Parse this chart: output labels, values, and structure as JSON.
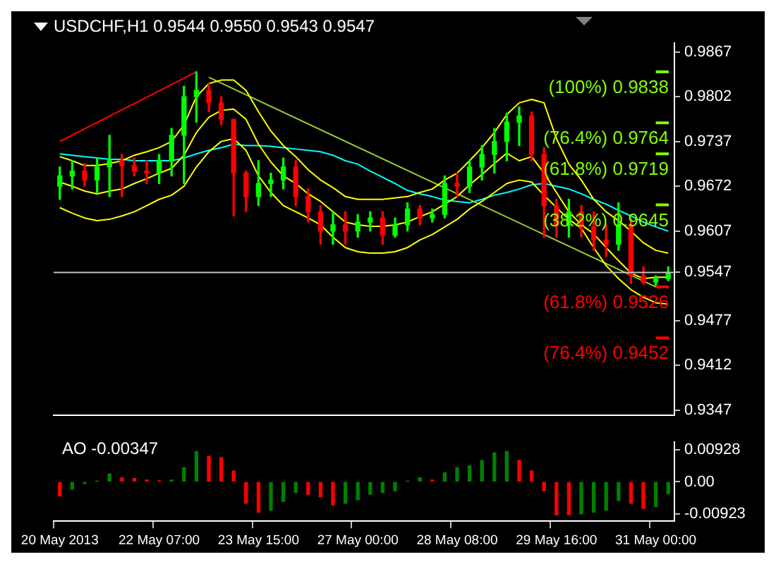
{
  "chart_data": [
    {
      "type": "candlestick",
      "title": "USDCHF,H1 0.9544 0.9550 0.9543 0.9547",
      "categories": [
        null,
        null,
        null,
        null,
        null,
        null,
        null,
        null,
        null,
        null,
        null,
        null,
        null,
        null,
        null,
        null,
        null,
        null,
        null,
        null,
        null,
        null,
        null,
        null,
        null,
        null,
        null,
        null,
        null,
        null,
        null,
        null,
        null,
        null,
        null,
        null,
        null,
        null,
        null,
        null,
        null,
        null,
        null,
        null,
        null,
        null,
        null,
        null,
        null,
        null
      ],
      "ohlc": [
        [
          0.9672,
          0.97,
          0.9653,
          0.9687
        ],
        [
          0.9687,
          0.9709,
          0.9668,
          0.9694
        ],
        [
          0.9694,
          0.9705,
          0.9672,
          0.9681
        ],
        [
          0.9681,
          0.9713,
          0.9663,
          0.97
        ],
        [
          0.97,
          0.9746,
          0.9657,
          0.9709
        ],
        [
          0.9709,
          0.9718,
          0.9657,
          0.9702
        ],
        [
          0.9702,
          0.9713,
          0.9687,
          0.9694
        ],
        [
          0.9694,
          0.9709,
          0.9676,
          0.9691
        ],
        [
          0.9691,
          0.9718,
          0.9676,
          0.9709
        ],
        [
          0.9709,
          0.9756,
          0.9687,
          0.9746
        ],
        [
          0.9746,
          0.9817,
          0.9676,
          0.9802
        ],
        [
          0.9802,
          0.9838,
          0.9765,
          0.9811
        ],
        [
          0.9811,
          0.9821,
          0.978,
          0.9793
        ],
        [
          0.9793,
          0.9802,
          0.9761,
          0.9769
        ],
        [
          0.9769,
          0.9769,
          0.9629,
          0.9691
        ],
        [
          0.9691,
          0.9694,
          0.9635,
          0.9657
        ],
        [
          0.9657,
          0.9709,
          0.9644,
          0.9676
        ],
        [
          0.9676,
          0.9691,
          0.9657,
          0.9681
        ],
        [
          0.9681,
          0.9713,
          0.9668,
          0.97
        ],
        [
          0.97,
          0.9709,
          0.9644,
          0.9657
        ],
        [
          0.9657,
          0.9668,
          0.962,
          0.9635
        ],
        [
          0.9635,
          0.9644,
          0.9588,
          0.9607
        ],
        [
          0.9607,
          0.9635,
          0.9588,
          0.9616
        ],
        [
          0.9616,
          0.9635,
          0.9588,
          0.9607
        ],
        [
          0.9607,
          0.9631,
          0.9598,
          0.962
        ],
        [
          0.962,
          0.9635,
          0.9607,
          0.9626
        ],
        [
          0.9626,
          0.9635,
          0.9588,
          0.9601
        ],
        [
          0.9601,
          0.9626,
          0.9598,
          0.9616
        ],
        [
          0.9616,
          0.9648,
          0.9607,
          0.9639
        ],
        [
          0.9639,
          0.9644,
          0.9616,
          0.9626
        ],
        [
          0.9626,
          0.9639,
          0.962,
          0.9631
        ],
        [
          0.9631,
          0.9687,
          0.9626,
          0.9676
        ],
        [
          0.9676,
          0.9691,
          0.9657,
          0.9672
        ],
        [
          0.9672,
          0.9709,
          0.9663,
          0.97
        ],
        [
          0.97,
          0.9731,
          0.9681,
          0.9718
        ],
        [
          0.9718,
          0.9756,
          0.9691,
          0.9737
        ],
        [
          0.9737,
          0.9778,
          0.9709,
          0.9765
        ],
        [
          0.9765,
          0.9787,
          0.9731,
          0.9774
        ],
        [
          0.9774,
          0.978,
          0.9709,
          0.9718
        ],
        [
          0.9718,
          0.9728,
          0.9598,
          0.9644
        ],
        [
          0.9644,
          0.9653,
          0.9598,
          0.9616
        ],
        [
          0.9616,
          0.9653,
          0.9598,
          0.9635
        ],
        [
          0.9635,
          0.9644,
          0.9598,
          0.9613
        ],
        [
          0.9613,
          0.9635,
          0.9579,
          0.9594
        ],
        [
          0.9594,
          0.9616,
          0.957,
          0.9588
        ],
        [
          0.9588,
          0.9648,
          0.9579,
          0.9616
        ],
        [
          0.9616,
          0.9626,
          0.9531,
          0.9542
        ],
        [
          0.9542,
          0.9555,
          0.953,
          0.9533
        ],
        [
          0.9533,
          0.9542,
          0.9526,
          0.9538
        ],
        [
          0.9538,
          0.9555,
          0.9535,
          0.9547
        ]
      ],
      "colors": [
        "#00ff00",
        "#00ff00",
        "#ff0000",
        "#00ff00",
        "#00ff00",
        "#ff0000",
        "#ff0000",
        "#ff0000",
        "#00ff00",
        "#00ff00",
        "#00ff00",
        "#00ff00",
        "#ff0000",
        "#ff0000",
        "#ff0000",
        "#ff0000",
        "#00ff00",
        "#00ff00",
        "#00ff00",
        "#ff0000",
        "#ff0000",
        "#ff0000",
        "#00ff00",
        "#ff0000",
        "#00ff00",
        "#00ff00",
        "#ff0000",
        "#00ff00",
        "#00ff00",
        "#ff0000",
        "#00ff00",
        "#00ff00",
        "#ff0000",
        "#00ff00",
        "#00ff00",
        "#00ff00",
        "#00ff00",
        "#00ff00",
        "#ff0000",
        "#ff0000",
        "#ff0000",
        "#00ff00",
        "#ff0000",
        "#ff0000",
        "#ff0000",
        "#00ff00",
        "#ff0000",
        "#ff0000",
        "#00ff00",
        "#00ff00"
      ],
      "series": [
        {
          "type": "line",
          "color": "#ffff00",
          "values": [
            0.9715,
            0.9709,
            0.9702,
            0.9702,
            0.9705,
            0.9709,
            0.9717,
            0.9722,
            0.9728,
            0.9737,
            0.9761,
            0.9802,
            0.9821,
            0.9826,
            0.9826,
            0.9811,
            0.978,
            0.9752,
            0.9731,
            0.9715,
            0.9696,
            0.9681,
            0.967,
            0.9657,
            0.9653,
            0.9653,
            0.9653,
            0.9655,
            0.9657,
            0.9663,
            0.9668,
            0.9681,
            0.9691,
            0.9709,
            0.9728,
            0.975,
            0.9776,
            0.9793,
            0.9798,
            0.9793,
            0.9741,
            0.9704,
            0.9681,
            0.9653,
            0.9635,
            0.9622,
            0.9607,
            0.959,
            0.9579,
            0.9575
          ]
        },
        {
          "type": "line",
          "color": "#ffff00",
          "values": [
            0.9678,
            0.9672,
            0.9665,
            0.9661,
            0.9665,
            0.9668,
            0.9676,
            0.9683,
            0.9691,
            0.9698,
            0.9717,
            0.975,
            0.9772,
            0.9782,
            0.9784,
            0.9769,
            0.9733,
            0.9707,
            0.9687,
            0.9676,
            0.9661,
            0.965,
            0.9635,
            0.962,
            0.9616,
            0.9614,
            0.9614,
            0.9616,
            0.962,
            0.9628,
            0.9635,
            0.9646,
            0.9657,
            0.9674,
            0.9689,
            0.9705,
            0.972,
            0.9709,
            0.9715,
            0.9691,
            0.9663,
            0.9635,
            0.9616,
            0.9603,
            0.9583,
            0.9564,
            0.9546,
            0.9538,
            0.954,
            0.954
          ]
        },
        {
          "type": "line",
          "color": "#ffff00",
          "values": [
            0.9641,
            0.9633,
            0.9626,
            0.9622,
            0.9624,
            0.9629,
            0.9635,
            0.9644,
            0.9653,
            0.9659,
            0.9672,
            0.97,
            0.9722,
            0.9737,
            0.9741,
            0.9724,
            0.9687,
            0.9663,
            0.9644,
            0.9635,
            0.9626,
            0.9616,
            0.9598,
            0.9583,
            0.9577,
            0.9575,
            0.9575,
            0.9577,
            0.9583,
            0.9594,
            0.9602,
            0.9613,
            0.9624,
            0.9639,
            0.965,
            0.9663,
            0.9676,
            0.9681,
            0.9678,
            0.9659,
            0.9641,
            0.9624,
            0.9611,
            0.9583,
            0.9557,
            0.9538,
            0.9522,
            0.9511,
            0.9503,
            0.9501
          ]
        },
        {
          "type": "line",
          "color": "#00ffff",
          "values": [
            0.9719,
            0.9717,
            0.9715,
            0.9713,
            0.9711,
            0.9711,
            0.9709,
            0.9709,
            0.9709,
            0.9709,
            0.9713,
            0.9719,
            0.9724,
            0.9728,
            0.9733,
            0.9731,
            0.9731,
            0.973,
            0.9728,
            0.9726,
            0.9724,
            0.9722,
            0.9717,
            0.9709,
            0.9704,
            0.9694,
            0.9685,
            0.9676,
            0.9666,
            0.9661,
            0.9657,
            0.9652,
            0.965,
            0.9648,
            0.9653,
            0.9659,
            0.9663,
            0.9668,
            0.9674,
            0.9676,
            0.9672,
            0.9668,
            0.9661,
            0.9653,
            0.9646,
            0.9637,
            0.9629,
            0.962,
            0.9613,
            0.9607
          ]
        },
        {
          "type": "line",
          "color": "#ff0000",
          "values": [
            0.9737,
            null,
            null,
            null,
            null,
            null,
            null,
            null,
            null,
            null,
            null,
            0.9838,
            null,
            null,
            null,
            null,
            null,
            null,
            null,
            null,
            null,
            null,
            null,
            null,
            null,
            null,
            null,
            null,
            null,
            null,
            null,
            null,
            null,
            null,
            null,
            null,
            null,
            null,
            null,
            null,
            null,
            null,
            null,
            null,
            null,
            null,
            null,
            null,
            null,
            null
          ]
        },
        {
          "type": "line",
          "color": "#9acd32",
          "values": [
            null,
            null,
            null,
            null,
            null,
            null,
            null,
            null,
            null,
            null,
            null,
            null,
            0.983,
            null,
            null,
            null,
            null,
            null,
            null,
            null,
            null,
            null,
            null,
            null,
            null,
            null,
            null,
            null,
            null,
            null,
            null,
            null,
            null,
            null,
            null,
            null,
            null,
            null,
            null,
            null,
            null,
            null,
            null,
            null,
            null,
            null,
            null,
            null,
            0.9526,
            null
          ]
        }
      ],
      "ylim": [
        0.934,
        0.988
      ],
      "yticks": [
        0.9867,
        0.9802,
        0.9737,
        0.9672,
        0.9607,
        0.9547,
        0.9477,
        0.9412,
        0.9347
      ],
      "ref_lines": [
        {
          "axis": "y",
          "value": 0.9838,
          "label": "(100%) 0.9838",
          "color": "#80ff00"
        },
        {
          "axis": "y",
          "value": 0.9764,
          "label": "(76.4%) 0.9764",
          "color": "#80ff00"
        },
        {
          "axis": "y",
          "value": 0.9719,
          "label": "(61.8%) 0.9719",
          "color": "#80ff00"
        },
        {
          "axis": "y",
          "value": 0.9645,
          "label": "(38.2%) 0.9645",
          "color": "#80ff00"
        },
        {
          "axis": "y",
          "value": 0.9526,
          "label": "(61.8%) 0.9526",
          "color": "#ff0000"
        },
        {
          "axis": "y",
          "value": 0.9452,
          "label": "(76.4%) 0.9452",
          "color": "#ff0000"
        },
        {
          "axis": "y",
          "value": 0.9547,
          "color": "#c0c0c0"
        }
      ],
      "tick_labels": "y"
    },
    {
      "type": "bar",
      "title": "AO -0.00347",
      "categories": [
        "20 May 2013",
        null,
        null,
        null,
        null,
        null,
        null,
        null,
        "22 May 07:00",
        null,
        null,
        null,
        null,
        null,
        null,
        null,
        "23 May 15:00",
        null,
        null,
        null,
        null,
        null,
        null,
        null,
        "27 May 00:00",
        null,
        null,
        null,
        null,
        null,
        null,
        null,
        "28 May 08:00",
        null,
        null,
        null,
        null,
        null,
        null,
        null,
        "29 May 16:00",
        null,
        null,
        null,
        null,
        null,
        null,
        null,
        "31 May 00:00",
        null
      ],
      "values": [
        -0.0041,
        -0.0021,
        -0.0005,
        0.0002,
        0.0023,
        0.0012,
        0.001,
        0.0005,
        0.0003,
        0.0005,
        0.0041,
        0.0088,
        0.0074,
        0.007,
        0.0031,
        -0.0062,
        -0.0088,
        -0.0082,
        -0.0057,
        -0.0031,
        -0.0036,
        -0.0043,
        -0.0067,
        -0.0062,
        -0.0052,
        -0.0036,
        -0.0031,
        -0.0026,
        0.0002,
        0.0012,
        0.0005,
        0.0026,
        0.0041,
        0.0046,
        0.0062,
        0.0084,
        0.0088,
        0.0062,
        0.0031,
        -0.0026,
        -0.0096,
        -0.0096,
        -0.0093,
        -0.0088,
        -0.0082,
        -0.0054,
        -0.0062,
        -0.0077,
        -0.0072,
        -0.00347
      ],
      "colors": [
        "#ff0000",
        "#008000",
        "#008000",
        "#008000",
        "#008000",
        "#ff0000",
        "#ff0000",
        "#ff0000",
        "#ff0000",
        "#008000",
        "#008000",
        "#008000",
        "#ff0000",
        "#ff0000",
        "#ff0000",
        "#ff0000",
        "#ff0000",
        "#008000",
        "#008000",
        "#008000",
        "#ff0000",
        "#ff0000",
        "#ff0000",
        "#008000",
        "#008000",
        "#008000",
        "#008000",
        "#008000",
        "#008000",
        "#008000",
        "#ff0000",
        "#008000",
        "#008000",
        "#008000",
        "#008000",
        "#008000",
        "#008000",
        "#ff0000",
        "#ff0000",
        "#ff0000",
        "#ff0000",
        "#ff0000",
        "#008000",
        "#008000",
        "#008000",
        "#008000",
        "#ff0000",
        "#ff0000",
        "#008000",
        "#008000"
      ],
      "ylim": [
        -0.0114,
        0.0115
      ],
      "yticks": [
        0.00928,
        {
          "value": 0,
          "label": "0.00"
        },
        -0.00923
      ]
    }
  ]
}
